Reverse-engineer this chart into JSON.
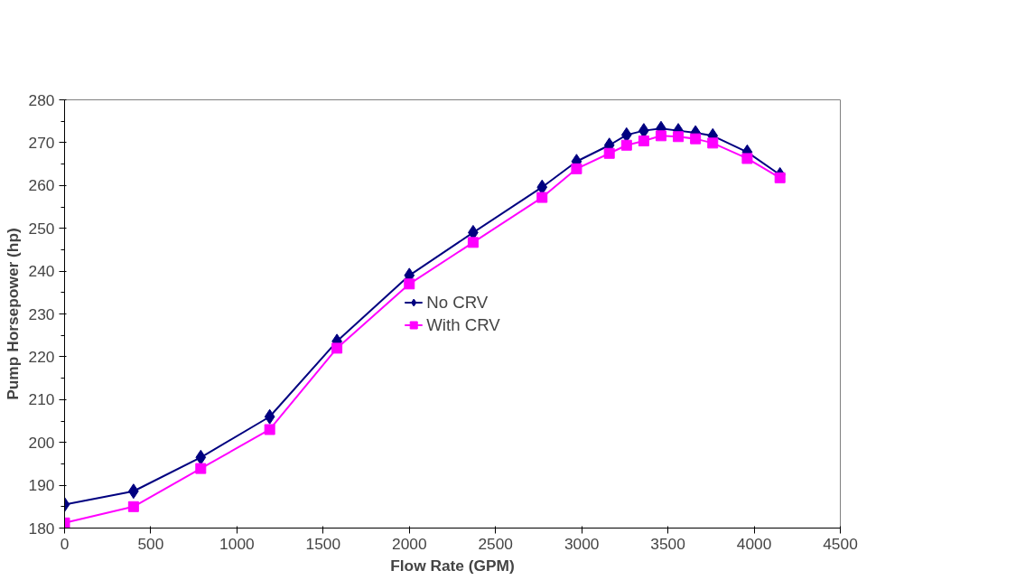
{
  "chart_data": {
    "type": "line",
    "xlabel": "Flow Rate (GPM)",
    "ylabel": "Pump Horsepower (hp)",
    "x": [
      0,
      400,
      790,
      1190,
      1580,
      2000,
      2370,
      2770,
      2970,
      3160,
      3260,
      3360,
      3460,
      3560,
      3660,
      3760,
      3960,
      4150
    ],
    "series": [
      {
        "name": "No CRV",
        "color": "#000080",
        "marker": "diamond",
        "values": [
          185.5,
          188.6,
          196.5,
          206,
          223.6,
          239,
          249,
          259.6,
          265.6,
          269.4,
          271.8,
          272.8,
          273.3,
          272.8,
          272.3,
          271.6,
          267.8,
          262.5
        ]
      },
      {
        "name": "With CRV",
        "color": "#ff00ff",
        "marker": "square",
        "values": [
          181.2,
          185,
          193.9,
          203,
          222,
          237,
          246.7,
          257.2,
          263.9,
          267.5,
          269.4,
          270.4,
          271.6,
          271.4,
          270.9,
          269.9,
          266.3,
          261.8
        ]
      }
    ],
    "xlim": [
      0,
      4500
    ],
    "xticks": [
      0,
      500,
      1000,
      1500,
      2000,
      2500,
      3000,
      3500,
      4000,
      4500
    ],
    "ylim": [
      180,
      280
    ],
    "yticks": [
      180,
      190,
      200,
      210,
      220,
      230,
      240,
      250,
      260,
      270,
      280
    ],
    "grid": false,
    "legend": "center",
    "line_style": "solid"
  }
}
